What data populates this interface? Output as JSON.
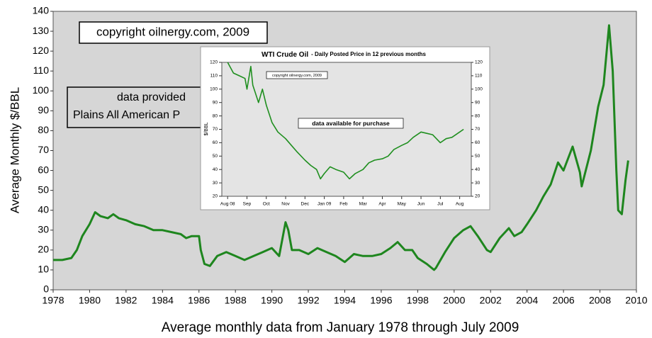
{
  "chart_data": [
    {
      "type": "line",
      "xlabel": "Average monthly data from January 1978 through July 2009",
      "ylabel": "Average Monthly $/BBL",
      "annotations": [
        "copyright oilnergy.com, 2009",
        "data provided",
        "Plains All American P"
      ],
      "x": [
        1978.0,
        1978.5,
        1979.0,
        1979.3,
        1979.6,
        1980.0,
        1980.3,
        1980.6,
        1981.0,
        1981.3,
        1981.6,
        1982.0,
        1982.5,
        1983.0,
        1983.5,
        1984.0,
        1984.5,
        1985.0,
        1985.3,
        1985.6,
        1986.0,
        1986.1,
        1986.3,
        1986.6,
        1987.0,
        1987.5,
        1988.0,
        1988.5,
        1989.0,
        1989.5,
        1990.0,
        1990.4,
        1990.75,
        1990.9,
        1991.1,
        1991.5,
        1992.0,
        1992.5,
        1993.0,
        1993.5,
        1994.0,
        1994.5,
        1995.0,
        1995.5,
        1996.0,
        1996.5,
        1996.9,
        1997.3,
        1997.7,
        1998.0,
        1998.5,
        1998.9,
        1999.0,
        1999.5,
        2000.0,
        2000.5,
        2000.9,
        2001.3,
        2001.8,
        2002.0,
        2002.5,
        2003.0,
        2003.3,
        2003.7,
        2004.0,
        2004.5,
        2004.9,
        2005.3,
        2005.7,
        2006.0,
        2006.5,
        2006.9,
        2007.0,
        2007.5,
        2007.9,
        2008.2,
        2008.5,
        2008.7,
        2008.9,
        2009.0,
        2009.2,
        2009.4,
        2009.55
      ],
      "series": [
        {
          "color": "#1e861e",
          "values": [
            15,
            15,
            16,
            20,
            27,
            33,
            39,
            37,
            36,
            38,
            36,
            35,
            33,
            32,
            30,
            30,
            29,
            28,
            26,
            27,
            27,
            20,
            13,
            12,
            17,
            19,
            17,
            15,
            17,
            19,
            21,
            17,
            34,
            30,
            20,
            20,
            18,
            21,
            19,
            17,
            14,
            18,
            17,
            17,
            18,
            21,
            24,
            20,
            20,
            16,
            13,
            10,
            11,
            19,
            26,
            30,
            32,
            27,
            20,
            19,
            26,
            31,
            27,
            29,
            33,
            40,
            47,
            53,
            64,
            60,
            72,
            59,
            52,
            70,
            92,
            103,
            133,
            110,
            60,
            40,
            38,
            55,
            65
          ]
        }
      ],
      "xlim": [
        1978,
        2010
      ],
      "xticks": [
        1978,
        1980,
        1982,
        1984,
        1986,
        1988,
        1990,
        1992,
        1994,
        1996,
        1998,
        2000,
        2002,
        2004,
        2006,
        2008,
        2010
      ],
      "ylim": [
        0,
        140
      ],
      "yticks": [
        0,
        10,
        20,
        30,
        40,
        50,
        60,
        70,
        80,
        90,
        100,
        110,
        120,
        130,
        140
      ],
      "grid": false
    },
    {
      "type": "line",
      "title": "WTI Crude Oil",
      "subtitle": "- Daily Posted Price in 12 previous months",
      "ylabel": "$/BBL",
      "annotations": [
        "copyright oilnergy.com, 2009",
        "data available for purchase"
      ],
      "x": [
        0,
        0.3,
        0.6,
        0.9,
        1.0,
        1.2,
        1.3,
        1.6,
        1.8,
        2.0,
        2.3,
        2.6,
        3.0,
        3.3,
        3.6,
        4.0,
        4.3,
        4.6,
        4.8,
        5.0,
        5.3,
        5.6,
        6.0,
        6.3,
        6.6,
        7.0,
        7.3,
        7.6,
        8.0,
        8.3,
        8.6,
        9.0,
        9.3,
        9.6,
        10.0,
        10.3,
        10.6,
        11.0,
        11.3,
        11.6,
        12.0,
        12.2
      ],
      "series": [
        {
          "color": "#1f8f1f",
          "values": [
            120,
            112,
            110,
            108,
            100,
            117,
            103,
            90,
            100,
            88,
            75,
            68,
            63,
            58,
            53,
            47,
            43,
            40,
            33,
            37,
            42,
            40,
            38,
            33,
            37,
            40,
            45,
            47,
            48,
            50,
            55,
            58,
            60,
            64,
            68,
            67,
            66,
            60,
            63,
            64,
            68,
            70
          ]
        }
      ],
      "xlim": [
        -0.3,
        12.6
      ],
      "xticks": [
        {
          "value": 0,
          "label": "Aug 08"
        },
        {
          "value": 1,
          "label": "Sep"
        },
        {
          "value": 2,
          "label": "Oct"
        },
        {
          "value": 3,
          "label": "Nov"
        },
        {
          "value": 4,
          "label": "Dec"
        },
        {
          "value": 5,
          "label": "Jan 09"
        },
        {
          "value": 6,
          "label": "Feb"
        },
        {
          "value": 7,
          "label": "Mar"
        },
        {
          "value": 8,
          "label": "Apr"
        },
        {
          "value": 9,
          "label": "May"
        },
        {
          "value": 10,
          "label": "Jun"
        },
        {
          "value": 11,
          "label": "Jul"
        },
        {
          "value": 12,
          "label": "Aug"
        }
      ],
      "ylim": [
        20,
        120
      ],
      "yticks": [
        20,
        30,
        40,
        50,
        60,
        70,
        80,
        90,
        100,
        110,
        120
      ],
      "y2lim": [
        20,
        120
      ],
      "y2ticks": [
        20,
        30,
        40,
        50,
        60,
        70,
        80,
        90,
        100,
        110,
        120
      ],
      "grid": false
    }
  ]
}
